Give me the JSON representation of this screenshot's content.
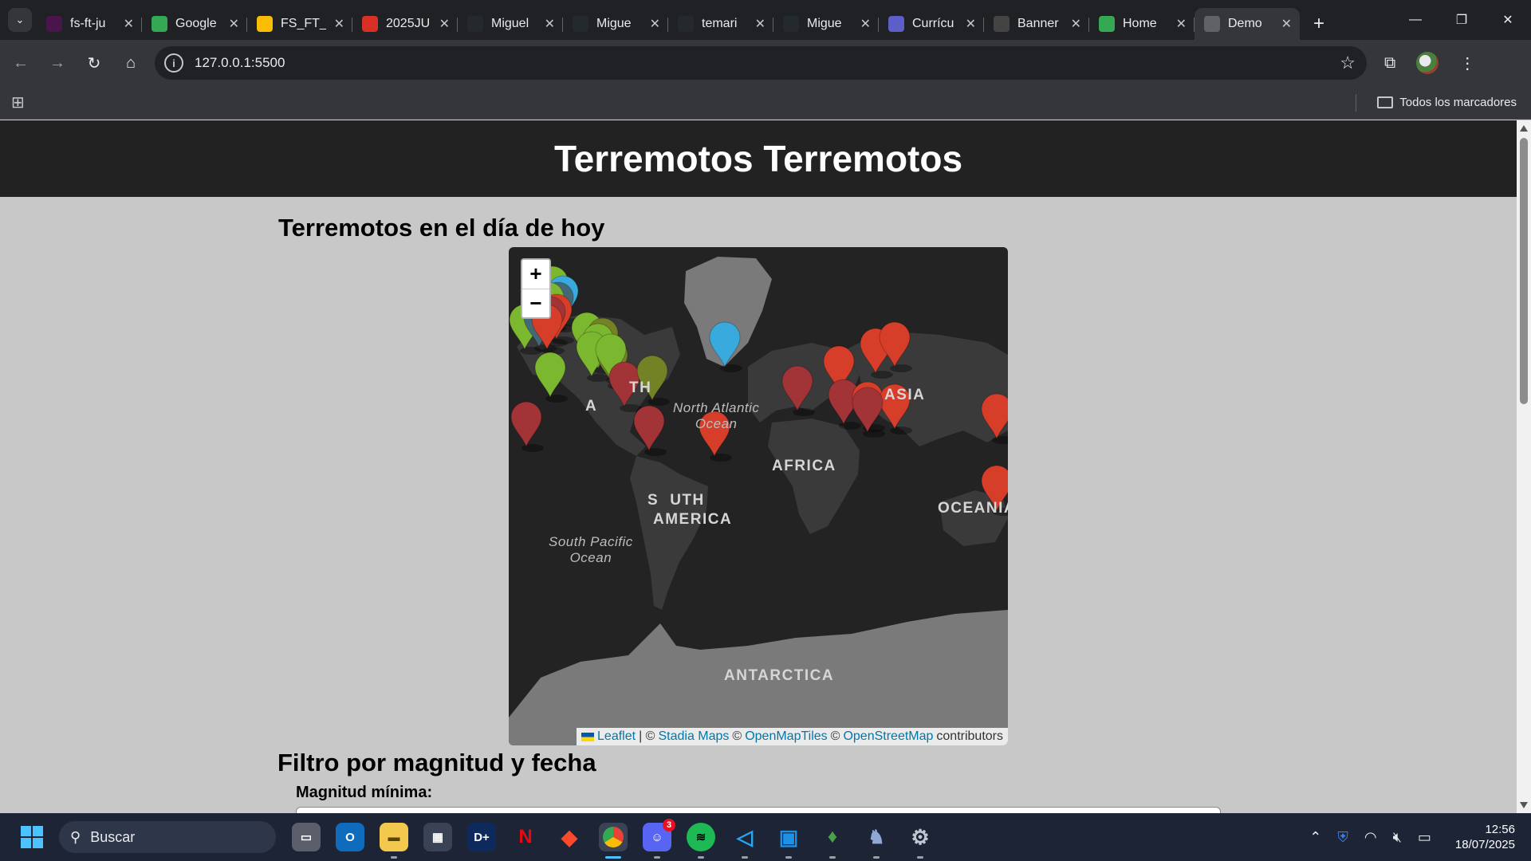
{
  "browser": {
    "tabs": [
      {
        "title": "fs-ft-ju",
        "icon": "slack-icon",
        "color": "#4a154b"
      },
      {
        "title": "Google",
        "icon": "google-icon",
        "color": "#34a853"
      },
      {
        "title": "FS_FT_",
        "icon": "drive-icon",
        "color": "#fbbc04"
      },
      {
        "title": "2025JU",
        "icon": "calendar-icon",
        "color": "#d93025"
      },
      {
        "title": "Miguel",
        "icon": "github-icon",
        "color": "#24292e"
      },
      {
        "title": "Migue",
        "icon": "github-icon",
        "color": "#24292e"
      },
      {
        "title": "temari",
        "icon": "github-icon",
        "color": "#24292e"
      },
      {
        "title": "Migue",
        "icon": "github-icon",
        "color": "#24292e"
      },
      {
        "title": "Currícu",
        "icon": "document-icon",
        "color": "#5b5fc7"
      },
      {
        "title": "Banner",
        "icon": "openai-icon",
        "color": "#444"
      },
      {
        "title": "Home",
        "icon": "drive-icon",
        "color": "#34a853"
      },
      {
        "title": "Demo",
        "icon": "globe-icon",
        "color": "#5f6368"
      }
    ],
    "url": "127.0.0.1:5500",
    "bookmarks_label": "Todos los marcadores"
  },
  "page": {
    "header_title": "Terremotos Terremotos",
    "section_title": "Terremotos en el día de hoy",
    "filter_title": "Filtro por magnitud y fecha",
    "magnitude_label": "Magnitud mínima:"
  },
  "map": {
    "zoom_in": "+",
    "zoom_out": "−",
    "labels": {
      "north_america_a": "TH",
      "north_america_b": "A",
      "asia": "ASIA",
      "africa": "AFRICA",
      "south_america_a": "S",
      "south_america_b": "UTH",
      "south_america_c": "AMERICA",
      "oceania": "OCEANIA",
      "antarctica": "ANTARCTICA",
      "north_atlantic": "North Atlantic",
      "north_atlantic_2": "Ocean",
      "south_pacific": "South Pacific",
      "south_pacific_2": "Ocean"
    },
    "attribution": {
      "leaflet": "Leaflet",
      "sep1": "| ©",
      "stadia": "Stadia Maps",
      "sep2": "©",
      "openmaptiles": "OpenMapTiles",
      "sep3": "©",
      "osm": "OpenStreetMap",
      "contributors": "contributors"
    },
    "marker_colors": {
      "green": "#7cb82f",
      "red": "#d63e2a",
      "darkred": "#a23336",
      "blue": "#38aadd",
      "olive": "#728224",
      "cadet": "#436978"
    }
  },
  "taskbar": {
    "search_placeholder": "Buscar",
    "discord_badge": "3",
    "time": "12:56",
    "date": "18/07/2025"
  }
}
